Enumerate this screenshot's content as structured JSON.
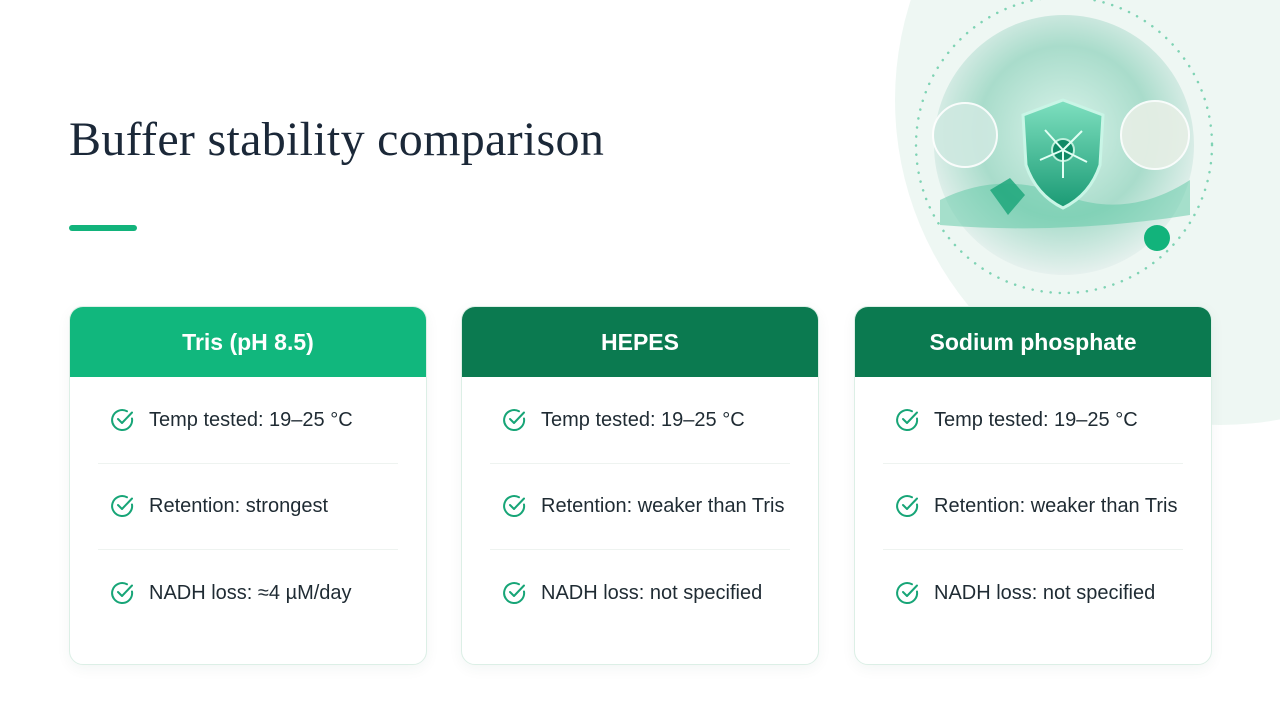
{
  "title": "Buffer stability comparison",
  "cards": [
    {
      "header": "Tris (pH 8.5)",
      "items": [
        "Temp tested: 19–25 °C",
        "Retention: strongest",
        "NADH loss: ≈4 µM/day"
      ]
    },
    {
      "header": "HEPES",
      "items": [
        "Temp tested: 19–25 °C",
        "Retention: weaker than Tris",
        "NADH loss: not specified"
      ]
    },
    {
      "header": "Sodium phosphate",
      "items": [
        "Temp tested: 19–25 °C",
        "Retention: weaker than Tris",
        "NADH loss: not specified"
      ]
    }
  ]
}
